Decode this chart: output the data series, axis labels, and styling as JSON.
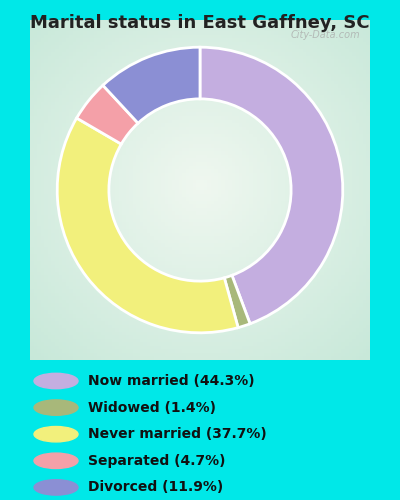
{
  "title": "Marital status in East Gaffney, SC",
  "categories": [
    "Now married",
    "Widowed",
    "Never married",
    "Separated",
    "Divorced"
  ],
  "values": [
    44.3,
    1.4,
    37.7,
    4.7,
    11.9
  ],
  "colors": [
    "#c4aee0",
    "#a8b87a",
    "#f2f07c",
    "#f4a0a8",
    "#8b8fd4"
  ],
  "legend_labels": [
    "Now married (44.3%)",
    "Widowed (1.4%)",
    "Never married (37.7%)",
    "Separated (4.7%)",
    "Divorced (11.9%)"
  ],
  "bg_outer": "#00e8e8",
  "bg_chart_edge": "#c8e8d8",
  "bg_chart_center": "#f0f8f0",
  "title_fontsize": 13,
  "legend_fontsize": 10,
  "watermark": "City-Data.com",
  "ordered_values": [
    44.3,
    1.4,
    37.7,
    4.7,
    11.9
  ],
  "ordered_colors": [
    "#c4aee0",
    "#a8b87a",
    "#f2f07c",
    "#f4a0a8",
    "#8b8fd4"
  ],
  "start_angle": 90,
  "donut_width": 0.38
}
